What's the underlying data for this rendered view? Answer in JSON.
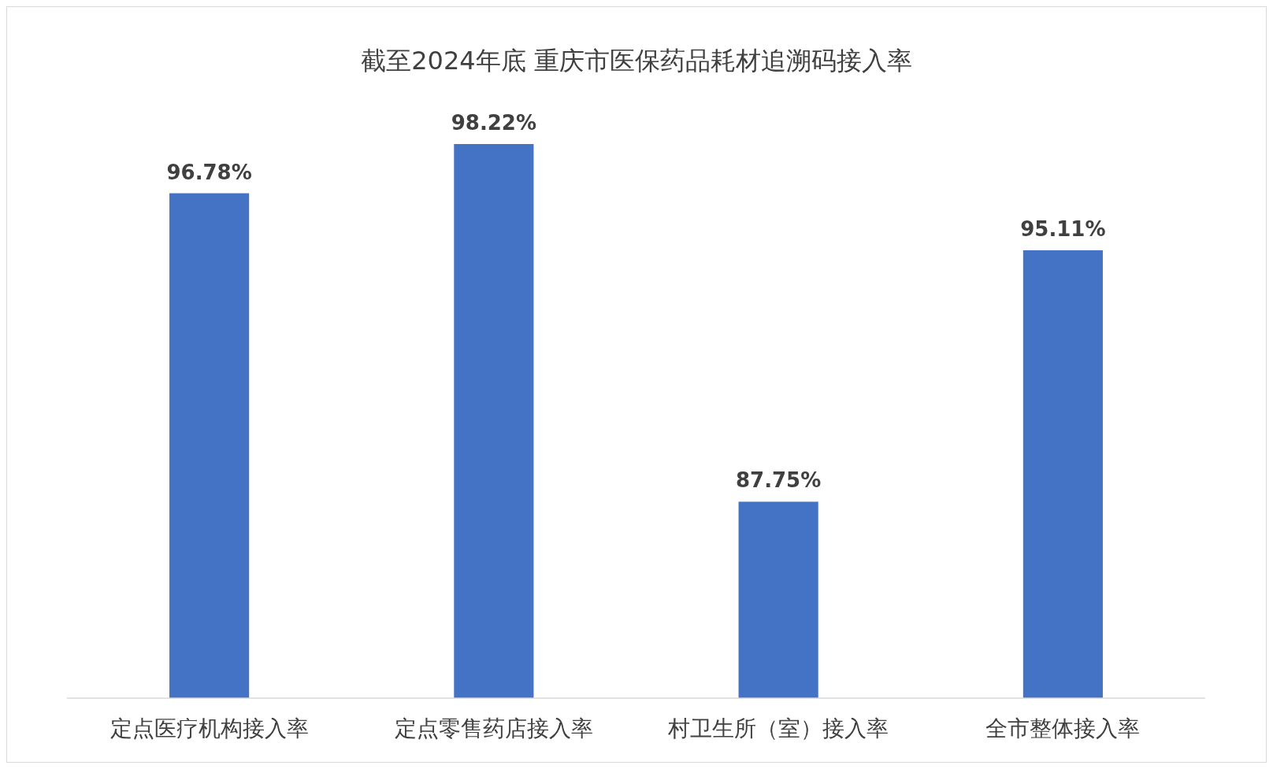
{
  "chart_data": {
    "type": "bar",
    "title": "截至2024年底 重庆市医保药品耗材追溯码接入率",
    "categories": [
      "定点医疗机构接入率",
      "定点零售药店接入率",
      "村卫生所（室）接入率",
      "全市整体接入率"
    ],
    "values": [
      96.78,
      98.22,
      87.75,
      95.11
    ],
    "value_labels": [
      "96.78%",
      "98.22%",
      "87.75%",
      "95.11%"
    ],
    "color": "#4472c4",
    "ylim": [
      82,
      98.22
    ],
    "tick_labels": "x"
  }
}
